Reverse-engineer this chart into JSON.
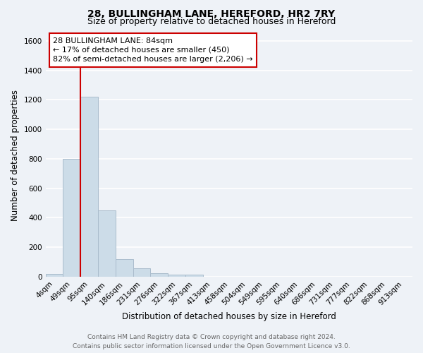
{
  "title_line1": "28, BULLINGHAM LANE, HEREFORD, HR2 7RY",
  "title_line2": "Size of property relative to detached houses in Hereford",
  "xlabel": "Distribution of detached houses by size in Hereford",
  "ylabel": "Number of detached properties",
  "bar_labels": [
    "4sqm",
    "49sqm",
    "95sqm",
    "140sqm",
    "186sqm",
    "231sqm",
    "276sqm",
    "322sqm",
    "367sqm",
    "413sqm",
    "458sqm",
    "504sqm",
    "549sqm",
    "595sqm",
    "640sqm",
    "686sqm",
    "731sqm",
    "777sqm",
    "822sqm",
    "868sqm",
    "913sqm"
  ],
  "bar_heights": [
    20,
    800,
    1220,
    450,
    120,
    55,
    25,
    15,
    15,
    0,
    0,
    0,
    0,
    0,
    0,
    0,
    0,
    0,
    0,
    0,
    0
  ],
  "bar_color": "#ccdce8",
  "bar_edge_color": "#aabccc",
  "red_line_x": 2,
  "red_line_color": "#cc0000",
  "ylim": [
    0,
    1650
  ],
  "yticks": [
    0,
    200,
    400,
    600,
    800,
    1000,
    1200,
    1400,
    1600
  ],
  "annotation_title": "28 BULLINGHAM LANE: 84sqm",
  "annotation_line1": "← 17% of detached houses are smaller (450)",
  "annotation_line2": "82% of semi-detached houses are larger (2,206) →",
  "annotation_box_color": "#ffffff",
  "annotation_box_edge": "#cc0000",
  "footer_line1": "Contains HM Land Registry data © Crown copyright and database right 2024.",
  "footer_line2": "Contains public sector information licensed under the Open Government Licence v3.0.",
  "background_color": "#eef2f7",
  "plot_bg_color": "#eef2f7",
  "grid_color": "#ffffff",
  "title_fontsize": 10,
  "subtitle_fontsize": 9,
  "axis_label_fontsize": 8.5,
  "tick_fontsize": 7.5,
  "footer_fontsize": 6.5,
  "annotation_fontsize": 8
}
